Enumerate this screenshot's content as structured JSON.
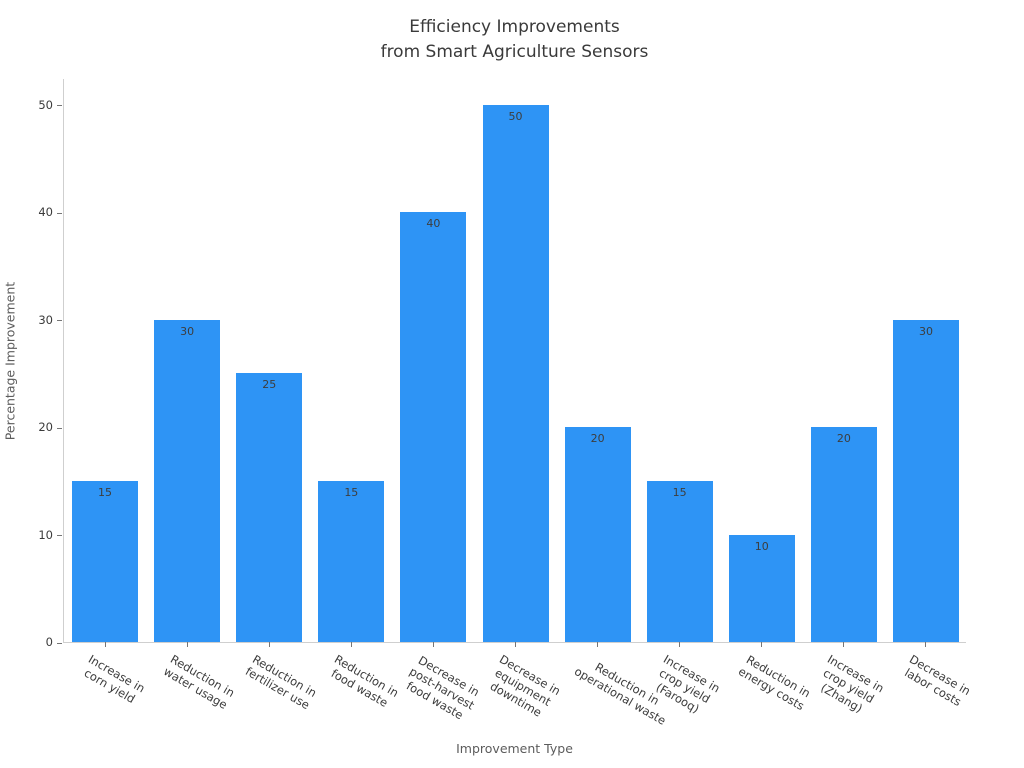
{
  "chart_data": {
    "type": "bar",
    "title": "Efficiency Improvements\nfrom Smart Agriculture Sensors",
    "xlabel": "Improvement Type",
    "ylabel": "Percentage Improvement",
    "categories": [
      "Increase in corn yield",
      "Reduction in water usage",
      "Reduction in fertilizer use",
      "Reduction in food waste",
      "Decrease in post-harvest food waste",
      "Decrease in equipment downtime",
      "Reduction in operational waste",
      "Increase in crop yield (Farooq)",
      "Reduction in energy costs",
      "Increase in crop yield (Zhang)",
      "Decrease in labor costs"
    ],
    "category_lines": [
      [
        "Increase in",
        "corn yield"
      ],
      [
        "Reduction in",
        "water usage"
      ],
      [
        "Reduction in",
        "fertilizer use"
      ],
      [
        "Reduction in",
        "food waste"
      ],
      [
        "Decrease in",
        "post-harvest",
        "food waste"
      ],
      [
        "Decrease in",
        "equipment",
        "downtime"
      ],
      [
        "Reduction in",
        "operational waste"
      ],
      [
        "Increase in",
        "crop yield",
        "(Farooq)"
      ],
      [
        "Reduction in",
        "energy costs"
      ],
      [
        "Increase in",
        "crop yield",
        "(Zhang)"
      ],
      [
        "Decrease in",
        "labor costs"
      ]
    ],
    "values": [
      15,
      30,
      25,
      15,
      40,
      50,
      20,
      15,
      10,
      20,
      30
    ],
    "value_labels_shown": true,
    "yticks": [
      0,
      10,
      20,
      30,
      40,
      50
    ],
    "ylim": [
      0,
      52.5
    ],
    "grid": false,
    "legend_position": "none",
    "bar_color": "#2E94F5",
    "text_color": "#3b3b3b"
  }
}
